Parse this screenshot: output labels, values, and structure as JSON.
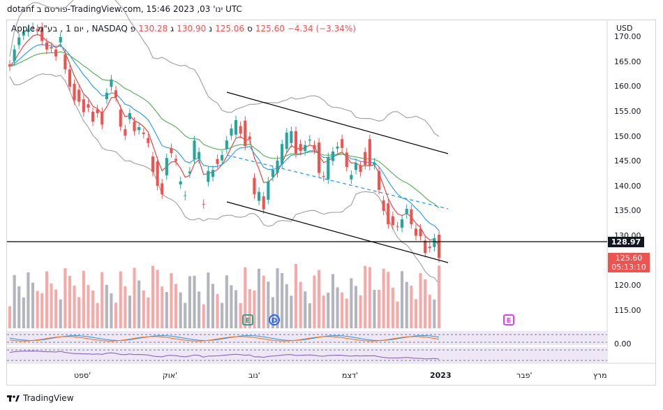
{
  "header": {
    "text": "dotanf פורסם ב-TradingView.com, ינו' 03, 2023 15:46 UTC"
  },
  "legend": {
    "symbol": "Apple",
    "timeframe": "1",
    "timeframe_unit": "יום",
    "company_note": "בע\"מ",
    "exchange": "NASDAQ",
    "open_label": "פ",
    "open": "130.28",
    "high_label": "ג",
    "high": "130.90",
    "low_label": "נ",
    "low": "125.06",
    "close_label": "ס",
    "close": "125.60",
    "change": "−4.34 (−3.34%)"
  },
  "axis": {
    "currency": "USD",
    "y_ticks": [
      "170.00",
      "165.00",
      "160.00",
      "155.00",
      "150.00",
      "145.00",
      "140.00",
      "135.00",
      "130.00",
      "120.00",
      "115.00"
    ],
    "x_ticks": [
      "ספט'",
      "אוק'",
      "נוב'",
      "דצמ'",
      "2023",
      "פבר'",
      "מרץ"
    ],
    "osc_zero": "0.00"
  },
  "price_tags": {
    "level": "128.97",
    "current": "125.60",
    "countdown": "05:13:10"
  },
  "events": {
    "earnings1": "E",
    "dividend": "D",
    "earnings2": "E"
  },
  "footer": {
    "brand": "TradingView"
  },
  "colors": {
    "up": "#26a69a",
    "down": "#ef5350",
    "vol_up": "#b2b5be",
    "vol_down": "#f7a9a7",
    "ema_red": "#e53935",
    "ema_blue": "#2196f3",
    "ema_green": "#4caf50",
    "bb": "#9e9e9e",
    "line": "#000000"
  },
  "chart_data": {
    "type": "candlestick",
    "symbol": "AAPL",
    "ylim": [
      112,
      172
    ],
    "candles": [
      [
        164.5,
        164.1
      ],
      [
        165.2,
        167.5
      ],
      [
        168.4,
        169.9
      ],
      [
        170.3,
        171.1
      ],
      [
        171.0,
        171.5
      ],
      [
        171.9,
        172.0
      ],
      [
        171.6,
        171.2
      ],
      [
        172.0,
        169.2
      ],
      [
        168.9,
        167.5
      ],
      [
        168.0,
        167.7
      ],
      [
        167.5,
        166.1
      ],
      [
        168.9,
        170.0
      ],
      [
        166.5,
        163.5
      ],
      [
        163.5,
        160.0
      ],
      [
        160.6,
        157.3
      ],
      [
        159.4,
        157.0
      ],
      [
        157.5,
        154.9
      ],
      [
        156.5,
        155.8
      ],
      [
        155.0,
        153.0
      ],
      [
        155.5,
        154.7
      ],
      [
        155.0,
        152.4
      ],
      [
        157.5,
        158.8
      ],
      [
        160.0,
        161.5
      ],
      [
        159.3,
        157.9
      ],
      [
        155.4,
        152.0
      ],
      [
        151.5,
        150.2
      ],
      [
        153.5,
        154.7
      ],
      [
        153.0,
        151.1
      ],
      [
        151.3,
        151.9
      ],
      [
        150.8,
        150.5
      ],
      [
        149.7,
        148.7
      ],
      [
        146.0,
        142.9
      ],
      [
        145.0,
        140.1
      ],
      [
        140.6,
        138.4
      ],
      [
        142.2,
        145.7
      ],
      [
        147.7,
        146.7
      ],
      [
        145.5,
        145.1
      ],
      [
        140.4,
        141.0
      ],
      [
        138.1,
        138.2
      ],
      [
        142.6,
        143.0
      ],
      [
        145.4,
        149.2
      ],
      [
        145.5,
        146.9
      ],
      [
        136.5,
        136.4
      ],
      [
        140.9,
        143.1
      ],
      [
        141.9,
        143.3
      ],
      [
        145.5,
        144.5
      ],
      [
        145.2,
        146.3
      ],
      [
        147.5,
        149.2
      ],
      [
        150.2,
        151.6
      ],
      [
        150.4,
        153.3
      ],
      [
        152.1,
        150.6
      ],
      [
        153.2,
        148.1
      ],
      [
        150.0,
        149.5
      ],
      [
        141.7,
        138.4
      ],
      [
        137.1,
        138.9
      ],
      [
        138.0,
        135.4
      ],
      [
        137.3,
        141.0
      ],
      [
        141.9,
        143.3
      ],
      [
        142.7,
        145.2
      ],
      [
        144.5,
        148.5
      ],
      [
        147.5,
        150.8
      ],
      [
        148.7,
        151.1
      ],
      [
        151.1,
        146.6
      ],
      [
        148.5,
        147.1
      ],
      [
        147.1,
        148.3
      ],
      [
        149.2,
        149.4
      ],
      [
        148.3,
        147.4
      ],
      [
        148.8,
        142.7
      ],
      [
        142.1,
        141.9
      ],
      [
        141.4,
        145.9
      ],
      [
        145.1,
        147.0
      ],
      [
        147.6,
        148.0
      ],
      [
        149.5,
        147.7
      ],
      [
        146.8,
        143.9
      ],
      [
        141.4,
        142.3
      ],
      [
        143.3,
        144.7
      ],
      [
        144.2,
        142.9
      ],
      [
        146.9,
        144.3
      ],
      [
        149.5,
        144.1
      ],
      [
        144.3,
        144.8
      ],
      [
        143.1,
        139.3
      ],
      [
        137.2,
        135.1
      ],
      [
        136.6,
        132.4
      ],
      [
        134.0,
        132.2
      ],
      [
        132.0,
        131.9
      ],
      [
        131.7,
        133.4
      ],
      [
        134.4,
        135.5
      ],
      [
        135.4,
        132.4
      ],
      [
        131.5,
        130.1
      ],
      [
        131.5,
        130.0
      ],
      [
        129.1,
        126.6
      ],
      [
        127.9,
        127.6
      ],
      [
        127.8,
        129.6
      ],
      [
        130.3,
        125.6
      ]
    ]
  }
}
